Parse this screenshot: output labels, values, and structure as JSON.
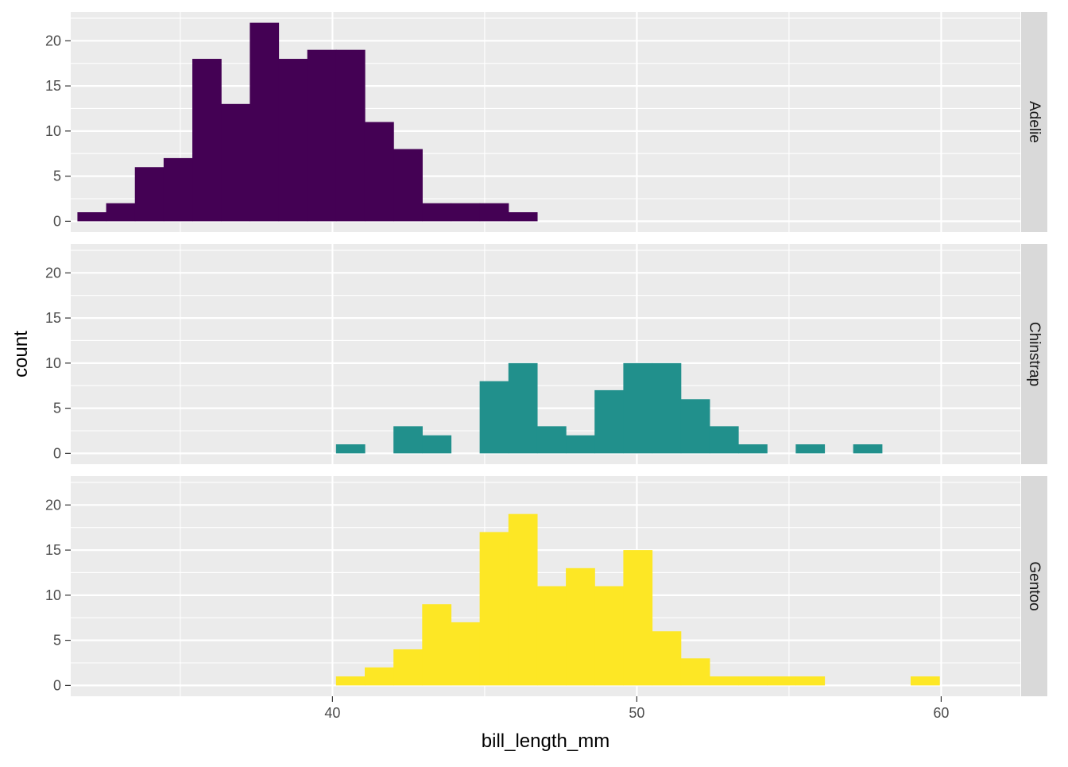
{
  "chart_data": {
    "type": "bar",
    "subtype": "faceted-histogram",
    "title": "",
    "xlabel": "bill_length_mm",
    "ylabel": "count",
    "xlim": [
      31.4,
      62.6
    ],
    "ylim": [
      -1.2,
      23.2
    ],
    "x_ticks": [
      40,
      50,
      60
    ],
    "x_minor_ticks": [
      35,
      45,
      55
    ],
    "y_ticks": [
      0,
      5,
      10,
      15,
      20
    ],
    "grid": true,
    "legend": "none",
    "bin_width": 0.944,
    "bin_start": 31.62,
    "facets": [
      {
        "name": "Adelie",
        "color": "#440154",
        "bins": [
          {
            "x": 32.1,
            "count": 1
          },
          {
            "x": 33.0,
            "count": 2
          },
          {
            "x": 33.9,
            "count": 6
          },
          {
            "x": 34.9,
            "count": 7
          },
          {
            "x": 35.8,
            "count": 18
          },
          {
            "x": 36.8,
            "count": 13
          },
          {
            "x": 37.7,
            "count": 22
          },
          {
            "x": 38.7,
            "count": 18
          },
          {
            "x": 39.6,
            "count": 19
          },
          {
            "x": 40.5,
            "count": 19
          },
          {
            "x": 41.5,
            "count": 11
          },
          {
            "x": 42.4,
            "count": 8
          },
          {
            "x": 43.4,
            "count": 2
          },
          {
            "x": 44.3,
            "count": 2
          },
          {
            "x": 45.3,
            "count": 2
          },
          {
            "x": 46.2,
            "count": 1
          }
        ]
      },
      {
        "name": "Chinstrap",
        "color": "#21908C",
        "bins": [
          {
            "x": 40.5,
            "count": 1
          },
          {
            "x": 42.4,
            "count": 3
          },
          {
            "x": 43.4,
            "count": 2
          },
          {
            "x": 45.3,
            "count": 8
          },
          {
            "x": 46.2,
            "count": 10
          },
          {
            "x": 47.2,
            "count": 3
          },
          {
            "x": 48.1,
            "count": 2
          },
          {
            "x": 49.1,
            "count": 7
          },
          {
            "x": 50.0,
            "count": 10
          },
          {
            "x": 50.9,
            "count": 10
          },
          {
            "x": 51.9,
            "count": 6
          },
          {
            "x": 52.8,
            "count": 3
          },
          {
            "x": 53.8,
            "count": 1
          },
          {
            "x": 55.7,
            "count": 1
          },
          {
            "x": 57.6,
            "count": 1
          }
        ]
      },
      {
        "name": "Gentoo",
        "color": "#FDE725",
        "bins": [
          {
            "x": 40.5,
            "count": 1
          },
          {
            "x": 41.5,
            "count": 2
          },
          {
            "x": 42.4,
            "count": 4
          },
          {
            "x": 43.4,
            "count": 9
          },
          {
            "x": 44.3,
            "count": 7
          },
          {
            "x": 45.3,
            "count": 17
          },
          {
            "x": 46.2,
            "count": 19
          },
          {
            "x": 47.2,
            "count": 11
          },
          {
            "x": 48.1,
            "count": 13
          },
          {
            "x": 49.1,
            "count": 11
          },
          {
            "x": 50.0,
            "count": 15
          },
          {
            "x": 50.9,
            "count": 6
          },
          {
            "x": 51.9,
            "count": 3
          },
          {
            "x": 52.8,
            "count": 1
          },
          {
            "x": 53.8,
            "count": 1
          },
          {
            "x": 54.7,
            "count": 1
          },
          {
            "x": 55.7,
            "count": 1
          },
          {
            "x": 59.5,
            "count": 1
          }
        ]
      }
    ]
  }
}
